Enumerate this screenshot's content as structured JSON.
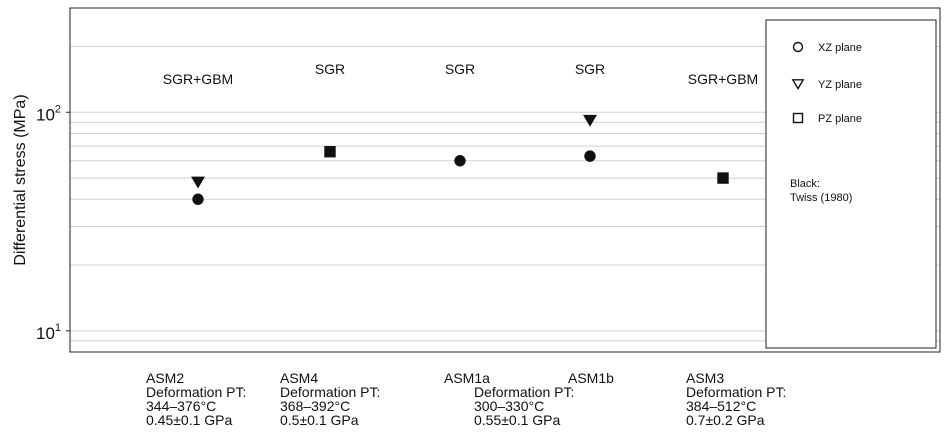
{
  "chart_data": {
    "type": "scatter",
    "y_scale": "log",
    "ylim": [
      8,
      300
    ],
    "ylabel": "Differential stress (MPa)",
    "y_ticks": [
      {
        "value": 10,
        "base": "10",
        "exp": "1"
      },
      {
        "value": 100,
        "base": "10",
        "exp": "2"
      }
    ],
    "grid": "horizontal",
    "categories": [
      "ASM2",
      "ASM4",
      "ASM1a",
      "ASM1b",
      "ASM3"
    ],
    "category_details": [
      {
        "name": "ASM2",
        "lines": [
          "ASM2",
          "Deformation PT:",
          "344–376°C",
          "0.45±0.1 GPa"
        ]
      },
      {
        "name": "ASM4",
        "lines": [
          "ASM4",
          "Deformation PT:",
          "368–392°C",
          "0.5±0.1 GPa"
        ]
      },
      {
        "name": "ASM1a",
        "lines": [
          "ASM1a"
        ]
      },
      {
        "name": "ASM1b",
        "lines": [
          "ASM1b"
        ]
      },
      {
        "name": "ASM3",
        "lines": [
          "ASM3",
          "Deformation PT:",
          "384–512°C",
          "0.7±0.2 GPa"
        ]
      }
    ],
    "shared_label": {
      "categories": [
        "ASM1a",
        "ASM1b"
      ],
      "lines": [
        "Deformation PT:",
        "300–330°C",
        "0.55±0.1 GPa"
      ]
    },
    "mechanisms": [
      "SGR+GBM",
      "SGR",
      "SGR",
      "SGR",
      "SGR+GBM"
    ],
    "series": [
      {
        "name": "XZ plane",
        "marker": "circle",
        "values": [
          40,
          null,
          60,
          63,
          null
        ]
      },
      {
        "name": "YZ plane",
        "marker": "triangle-down",
        "values": [
          48,
          null,
          null,
          92,
          null
        ]
      },
      {
        "name": "PZ plane",
        "marker": "square",
        "values": [
          null,
          66,
          null,
          null,
          50
        ]
      }
    ],
    "legend": {
      "placement": "right",
      "entries": [
        {
          "label": "XZ plane",
          "marker": "circle"
        },
        {
          "label": "YZ plane",
          "marker": "triangle-down"
        },
        {
          "label": "PZ plane",
          "marker": "square"
        }
      ],
      "note": [
        "Black:",
        "Twiss (1980)"
      ]
    },
    "marker_color": "#111111"
  }
}
